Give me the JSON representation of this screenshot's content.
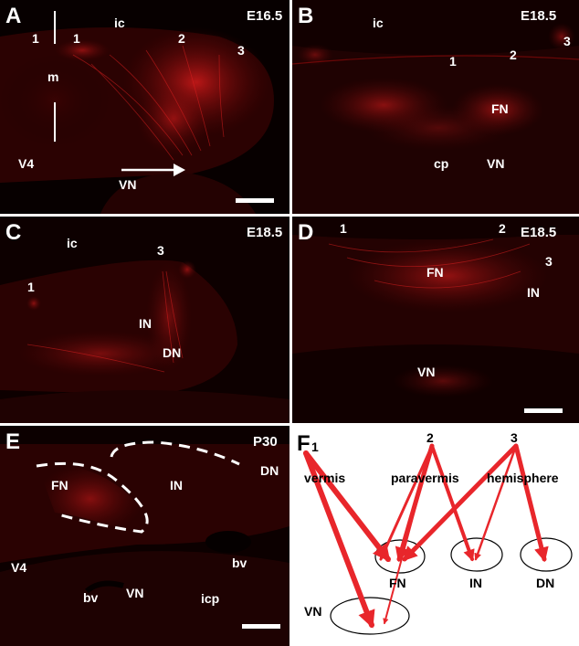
{
  "panels": {
    "A": {
      "letter": "A",
      "stage": "E16.5",
      "labels": {
        "ic": "ic",
        "one_left": "1",
        "one_right": "1",
        "two": "2",
        "three": "3",
        "m": "m",
        "v4": "V4",
        "vn": "VN"
      }
    },
    "B": {
      "letter": "B",
      "stage": "E18.5",
      "labels": {
        "ic": "ic",
        "one": "1",
        "two": "2",
        "three": "3",
        "fn": "FN",
        "cp": "cp",
        "vn": "VN"
      }
    },
    "C": {
      "letter": "C",
      "stage": "E18.5",
      "labels": {
        "ic": "ic",
        "one": "1",
        "three": "3",
        "in": "IN",
        "dn": "DN"
      }
    },
    "D": {
      "letter": "D",
      "stage": "E18.5",
      "labels": {
        "one": "1",
        "two": "2",
        "three": "3",
        "fn": "FN",
        "in": "IN",
        "vn": "VN"
      }
    },
    "E": {
      "letter": "E",
      "stage": "P30",
      "labels": {
        "fn": "FN",
        "in": "IN",
        "dn": "DN",
        "v4": "V4",
        "bv_left": "bv",
        "bv_right": "bv",
        "vn": "VN",
        "icp": "icp"
      }
    },
    "F": {
      "letter": "F",
      "sources": {
        "one": "1",
        "two": "2",
        "three": "3"
      },
      "regions": {
        "vermis": "vermis",
        "paravermis": "paravermis",
        "hemisphere": "hemisphere"
      },
      "nuclei": {
        "fn": "FN",
        "in": "IN",
        "dn": "DN",
        "vn": "VN"
      }
    }
  },
  "colors": {
    "fluorescence": "#e01818",
    "arrow": "#e8262b",
    "background": "#0b0000"
  }
}
